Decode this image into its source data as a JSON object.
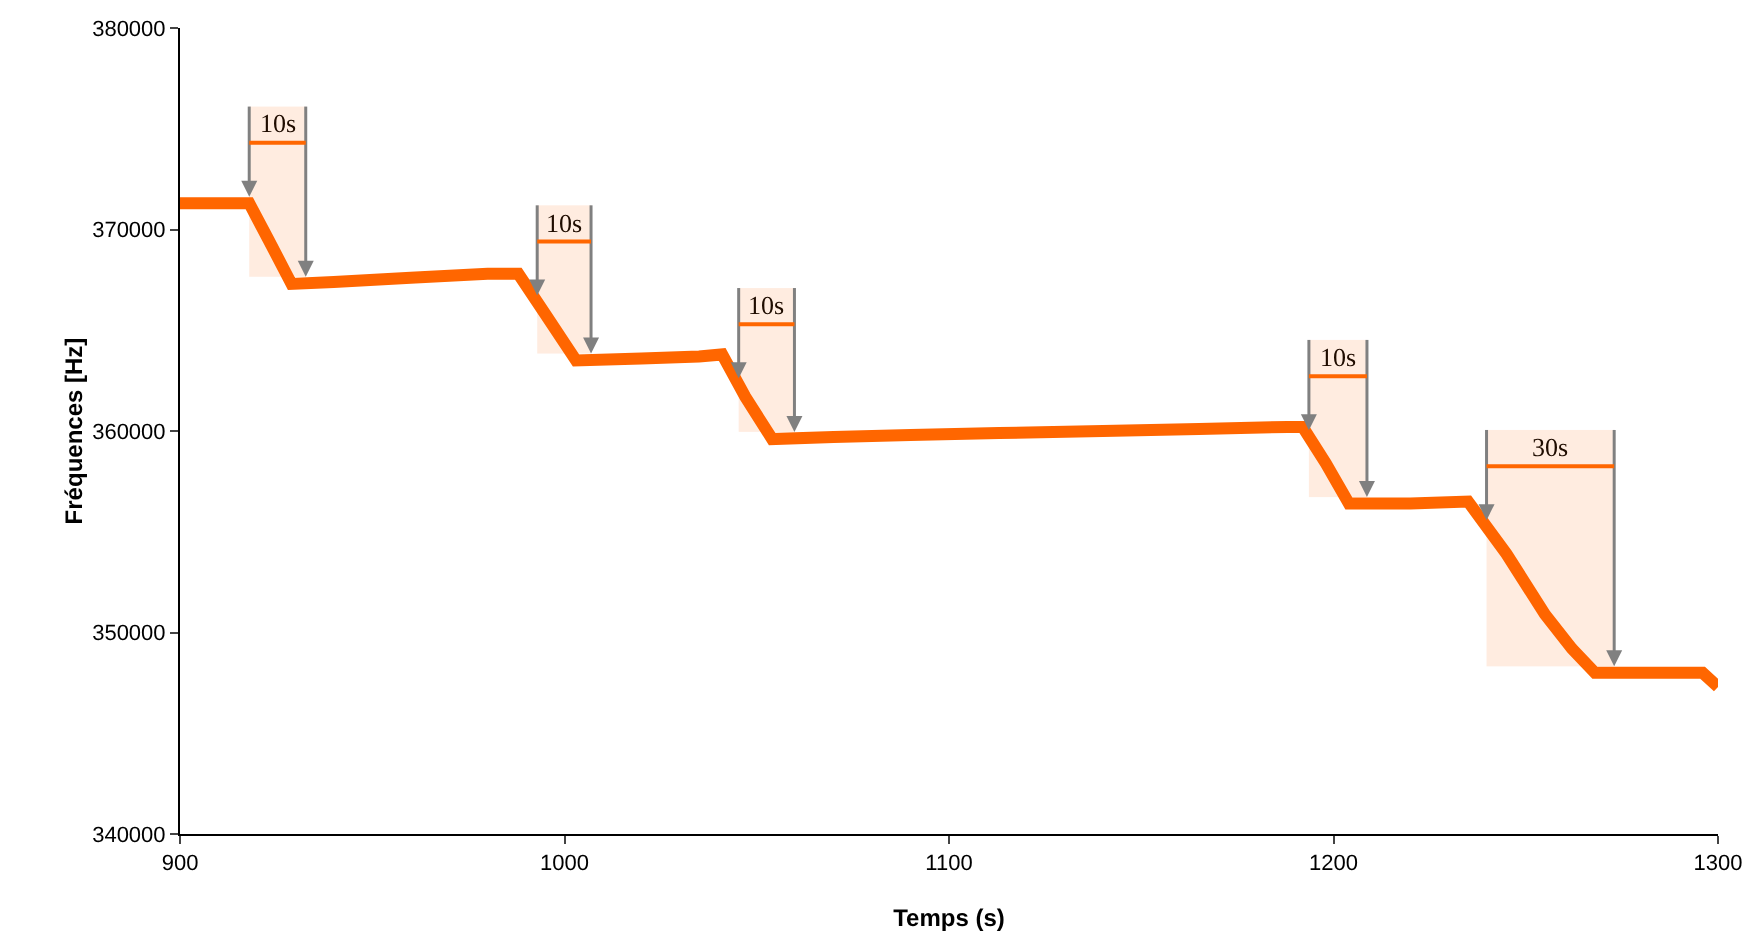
{
  "chart_data": {
    "type": "line",
    "xlabel": "Temps (s)",
    "ylabel": "Fréquences [Hz]",
    "series": [
      {
        "color": "#ff6600",
        "x": [
          900,
          910,
          918,
          923,
          929,
          940,
          960,
          980,
          988,
          995,
          1003,
          1020,
          1035,
          1041,
          1047,
          1054,
          1070,
          1090,
          1113,
          1140,
          1165,
          1188,
          1192,
          1198,
          1204,
          1220,
          1235,
          1245,
          1255,
          1262,
          1268,
          1280,
          1296,
          1300
        ],
        "values": [
          371300,
          371300,
          371300,
          369500,
          367300,
          367400,
          367600,
          367800,
          367800,
          365800,
          363500,
          363600,
          363700,
          363800,
          361700,
          359600,
          359700,
          359800,
          359900,
          360000,
          360100,
          360200,
          360200,
          358400,
          356400,
          356400,
          356500,
          353900,
          350900,
          349200,
          348000,
          348000,
          348000,
          347300
        ]
      }
    ],
    "xlim": [
      900,
      1300
    ],
    "xticks": [
      900,
      1000,
      1100,
      1200,
      1300
    ],
    "ylim": [
      340000,
      380000
    ],
    "yticks": [
      340000,
      350000,
      360000,
      370000,
      380000
    ],
    "grid": false,
    "marker": "none",
    "line_style": "solid",
    "bands": [
      {
        "axis": "x",
        "from": 918,
        "to": 932.7,
        "label": "10s",
        "color": "#ff6600"
      },
      {
        "axis": "x",
        "from": 992.9,
        "to": 1006.9,
        "label": "10s",
        "color": "#ff6600"
      },
      {
        "axis": "x",
        "from": 1045.3,
        "to": 1059.8,
        "label": "10s",
        "color": "#ff6600"
      },
      {
        "axis": "x",
        "from": 1193.6,
        "to": 1208.7,
        "label": "10s",
        "color": "#ff6600"
      },
      {
        "axis": "x",
        "from": 1239.8,
        "to": 1273,
        "label": "30s",
        "color": "#ff6600"
      }
    ]
  }
}
